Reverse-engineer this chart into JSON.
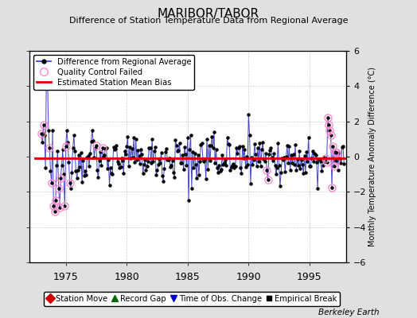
{
  "title": "MARIBOR/TABOR",
  "subtitle": "Difference of Station Temperature Data from Regional Average",
  "ylabel_right": "Monthly Temperature Anomaly Difference (°C)",
  "xlim": [
    1972.0,
    1998.0
  ],
  "ylim": [
    -6,
    6
  ],
  "yticks": [
    -6,
    -4,
    -2,
    0,
    2,
    4,
    6
  ],
  "bias_value": -0.1,
  "background_color": "#e0e0e0",
  "plot_bg_color": "#ffffff",
  "grid_color": "#c0c0c0",
  "line_color": "#4444cc",
  "dot_color": "#000000",
  "bias_color": "#dd0000",
  "qc_color": "#ff88cc",
  "watermark": "Berkeley Earth",
  "seed": 12345,
  "time_start": 1973.0,
  "time_end": 1997.83,
  "n_months": 299,
  "xticks": [
    1975,
    1980,
    1985,
    1990,
    1995
  ]
}
